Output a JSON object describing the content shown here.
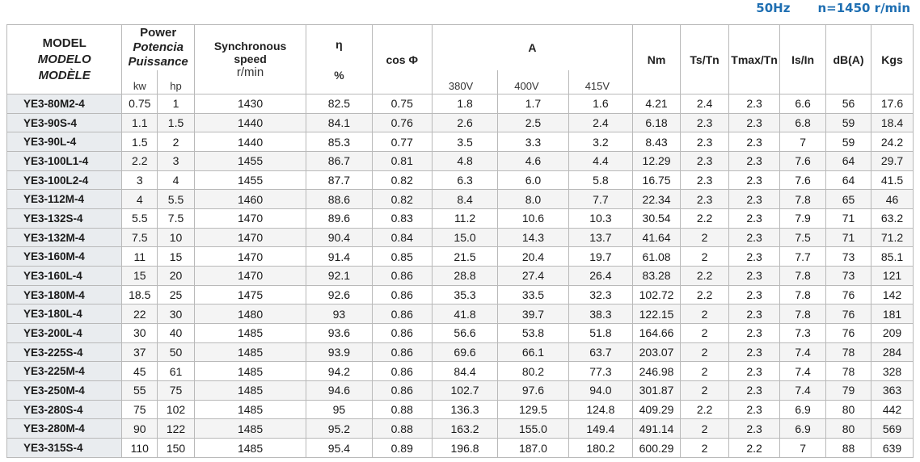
{
  "top": {
    "frequency": "50Hz",
    "speed": "n=1450 r/min"
  },
  "header": {
    "model": [
      "MODEL",
      "MODELO",
      "MODÈLE"
    ],
    "power": [
      "Power",
      "Potencia",
      "Puissance"
    ],
    "kw": "kw",
    "hp": "hp",
    "sync_speed": [
      "Synchronous",
      "speed"
    ],
    "rpm": "r/min",
    "eff": "η",
    "eff_unit": "%",
    "cosphi": "cos Φ",
    "amps": "A",
    "v380": "380V",
    "v400": "400V",
    "v415": "415V",
    "nm": "Nm",
    "tstn": "Ts/Tn",
    "tmaxtn": "Tmax/Tn",
    "isin": "Is/In",
    "dba": "dB(A)",
    "kgs": "Kgs"
  },
  "rows": [
    [
      "YE3-80M2-4",
      "0.75",
      "1",
      "1430",
      "82.5",
      "0.75",
      "1.8",
      "1.7",
      "1.6",
      "4.21",
      "2.4",
      "2.3",
      "6.6",
      "56",
      "17.6"
    ],
    [
      "YE3-90S-4",
      "1.1",
      "1.5",
      "1440",
      "84.1",
      "0.76",
      "2.6",
      "2.5",
      "2.4",
      "6.18",
      "2.3",
      "2.3",
      "6.8",
      "59",
      "18.4"
    ],
    [
      "YE3-90L-4",
      "1.5",
      "2",
      "1440",
      "85.3",
      "0.77",
      "3.5",
      "3.3",
      "3.2",
      "8.43",
      "2.3",
      "2.3",
      "7",
      "59",
      "24.2"
    ],
    [
      "YE3-100L1-4",
      "2.2",
      "3",
      "1455",
      "86.7",
      "0.81",
      "4.8",
      "4.6",
      "4.4",
      "12.29",
      "2.3",
      "2.3",
      "7.6",
      "64",
      "29.7"
    ],
    [
      "YE3-100L2-4",
      "3",
      "4",
      "1455",
      "87.7",
      "0.82",
      "6.3",
      "6.0",
      "5.8",
      "16.75",
      "2.3",
      "2.3",
      "7.6",
      "64",
      "41.5"
    ],
    [
      "YE3-112M-4",
      "4",
      "5.5",
      "1460",
      "88.6",
      "0.82",
      "8.4",
      "8.0",
      "7.7",
      "22.34",
      "2.3",
      "2.3",
      "7.8",
      "65",
      "46"
    ],
    [
      "YE3-132S-4",
      "5.5",
      "7.5",
      "1470",
      "89.6",
      "0.83",
      "11.2",
      "10.6",
      "10.3",
      "30.54",
      "2.2",
      "2.3",
      "7.9",
      "71",
      "63.2"
    ],
    [
      "YE3-132M-4",
      "7.5",
      "10",
      "1470",
      "90.4",
      "0.84",
      "15.0",
      "14.3",
      "13.7",
      "41.64",
      "2",
      "2.3",
      "7.5",
      "71",
      "71.2"
    ],
    [
      "YE3-160M-4",
      "11",
      "15",
      "1470",
      "91.4",
      "0.85",
      "21.5",
      "20.4",
      "19.7",
      "61.08",
      "2",
      "2.3",
      "7.7",
      "73",
      "85.1"
    ],
    [
      "YE3-160L-4",
      "15",
      "20",
      "1470",
      "92.1",
      "0.86",
      "28.8",
      "27.4",
      "26.4",
      "83.28",
      "2.2",
      "2.3",
      "7.8",
      "73",
      "121"
    ],
    [
      "YE3-180M-4",
      "18.5",
      "25",
      "1475",
      "92.6",
      "0.86",
      "35.3",
      "33.5",
      "32.3",
      "102.72",
      "2.2",
      "2.3",
      "7.8",
      "76",
      "142"
    ],
    [
      "YE3-180L-4",
      "22",
      "30",
      "1480",
      "93",
      "0.86",
      "41.8",
      "39.7",
      "38.3",
      "122.15",
      "2",
      "2.3",
      "7.8",
      "76",
      "181"
    ],
    [
      "YE3-200L-4",
      "30",
      "40",
      "1485",
      "93.6",
      "0.86",
      "56.6",
      "53.8",
      "51.8",
      "164.66",
      "2",
      "2.3",
      "7.3",
      "76",
      "209"
    ],
    [
      "YE3-225S-4",
      "37",
      "50",
      "1485",
      "93.9",
      "0.86",
      "69.6",
      "66.1",
      "63.7",
      "203.07",
      "2",
      "2.3",
      "7.4",
      "78",
      "284"
    ],
    [
      "YE3-225M-4",
      "45",
      "61",
      "1485",
      "94.2",
      "0.86",
      "84.4",
      "80.2",
      "77.3",
      "246.98",
      "2",
      "2.3",
      "7.4",
      "78",
      "328"
    ],
    [
      "YE3-250M-4",
      "55",
      "75",
      "1485",
      "94.6",
      "0.86",
      "102.7",
      "97.6",
      "94.0",
      "301.87",
      "2",
      "2.3",
      "7.4",
      "79",
      "363"
    ],
    [
      "YE3-280S-4",
      "75",
      "102",
      "1485",
      "95",
      "0.88",
      "136.3",
      "129.5",
      "124.8",
      "409.29",
      "2.2",
      "2.3",
      "6.9",
      "80",
      "442"
    ],
    [
      "YE3-280M-4",
      "90",
      "122",
      "1485",
      "95.2",
      "0.88",
      "163.2",
      "155.0",
      "149.4",
      "491.14",
      "2",
      "2.3",
      "6.9",
      "80",
      "569"
    ],
    [
      "YE3-315S-4",
      "110",
      "150",
      "1485",
      "95.4",
      "0.89",
      "196.8",
      "187.0",
      "180.2",
      "600.29",
      "2",
      "2.2",
      "7",
      "88",
      "639"
    ]
  ]
}
